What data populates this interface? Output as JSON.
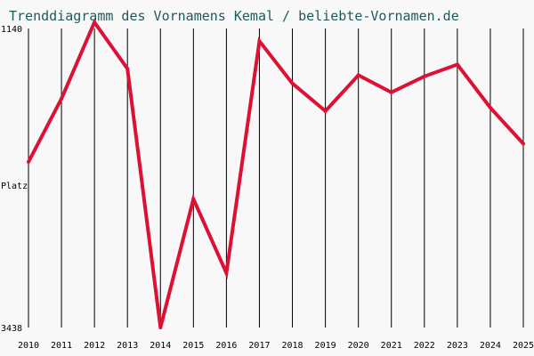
{
  "chart_data": {
    "type": "line",
    "title": "Trenddiagramm des Vornamens Kemal / beliebte-Vornamen.de",
    "ylabel": "Platz",
    "y_inverted": true,
    "ylim": [
      1140,
      3438
    ],
    "y_ticks": [
      1140,
      3438
    ],
    "x": [
      2010,
      2011,
      2012,
      2013,
      2014,
      2015,
      2016,
      2017,
      2018,
      2019,
      2020,
      2021,
      2022,
      2023,
      2024,
      2025
    ],
    "series": [
      {
        "values": [
          2165,
          1679,
          1093,
          1449,
          3438,
          2451,
          3019,
          1237,
          1562,
          1775,
          1499,
          1631,
          1508,
          1417,
          1749,
          2026
        ]
      }
    ],
    "grid": "vertical",
    "colors": {
      "line": "#dd1133",
      "grid": "#000000",
      "background": "#f8f8f8",
      "text": "#000000",
      "title": "#1f5a5a"
    }
  }
}
